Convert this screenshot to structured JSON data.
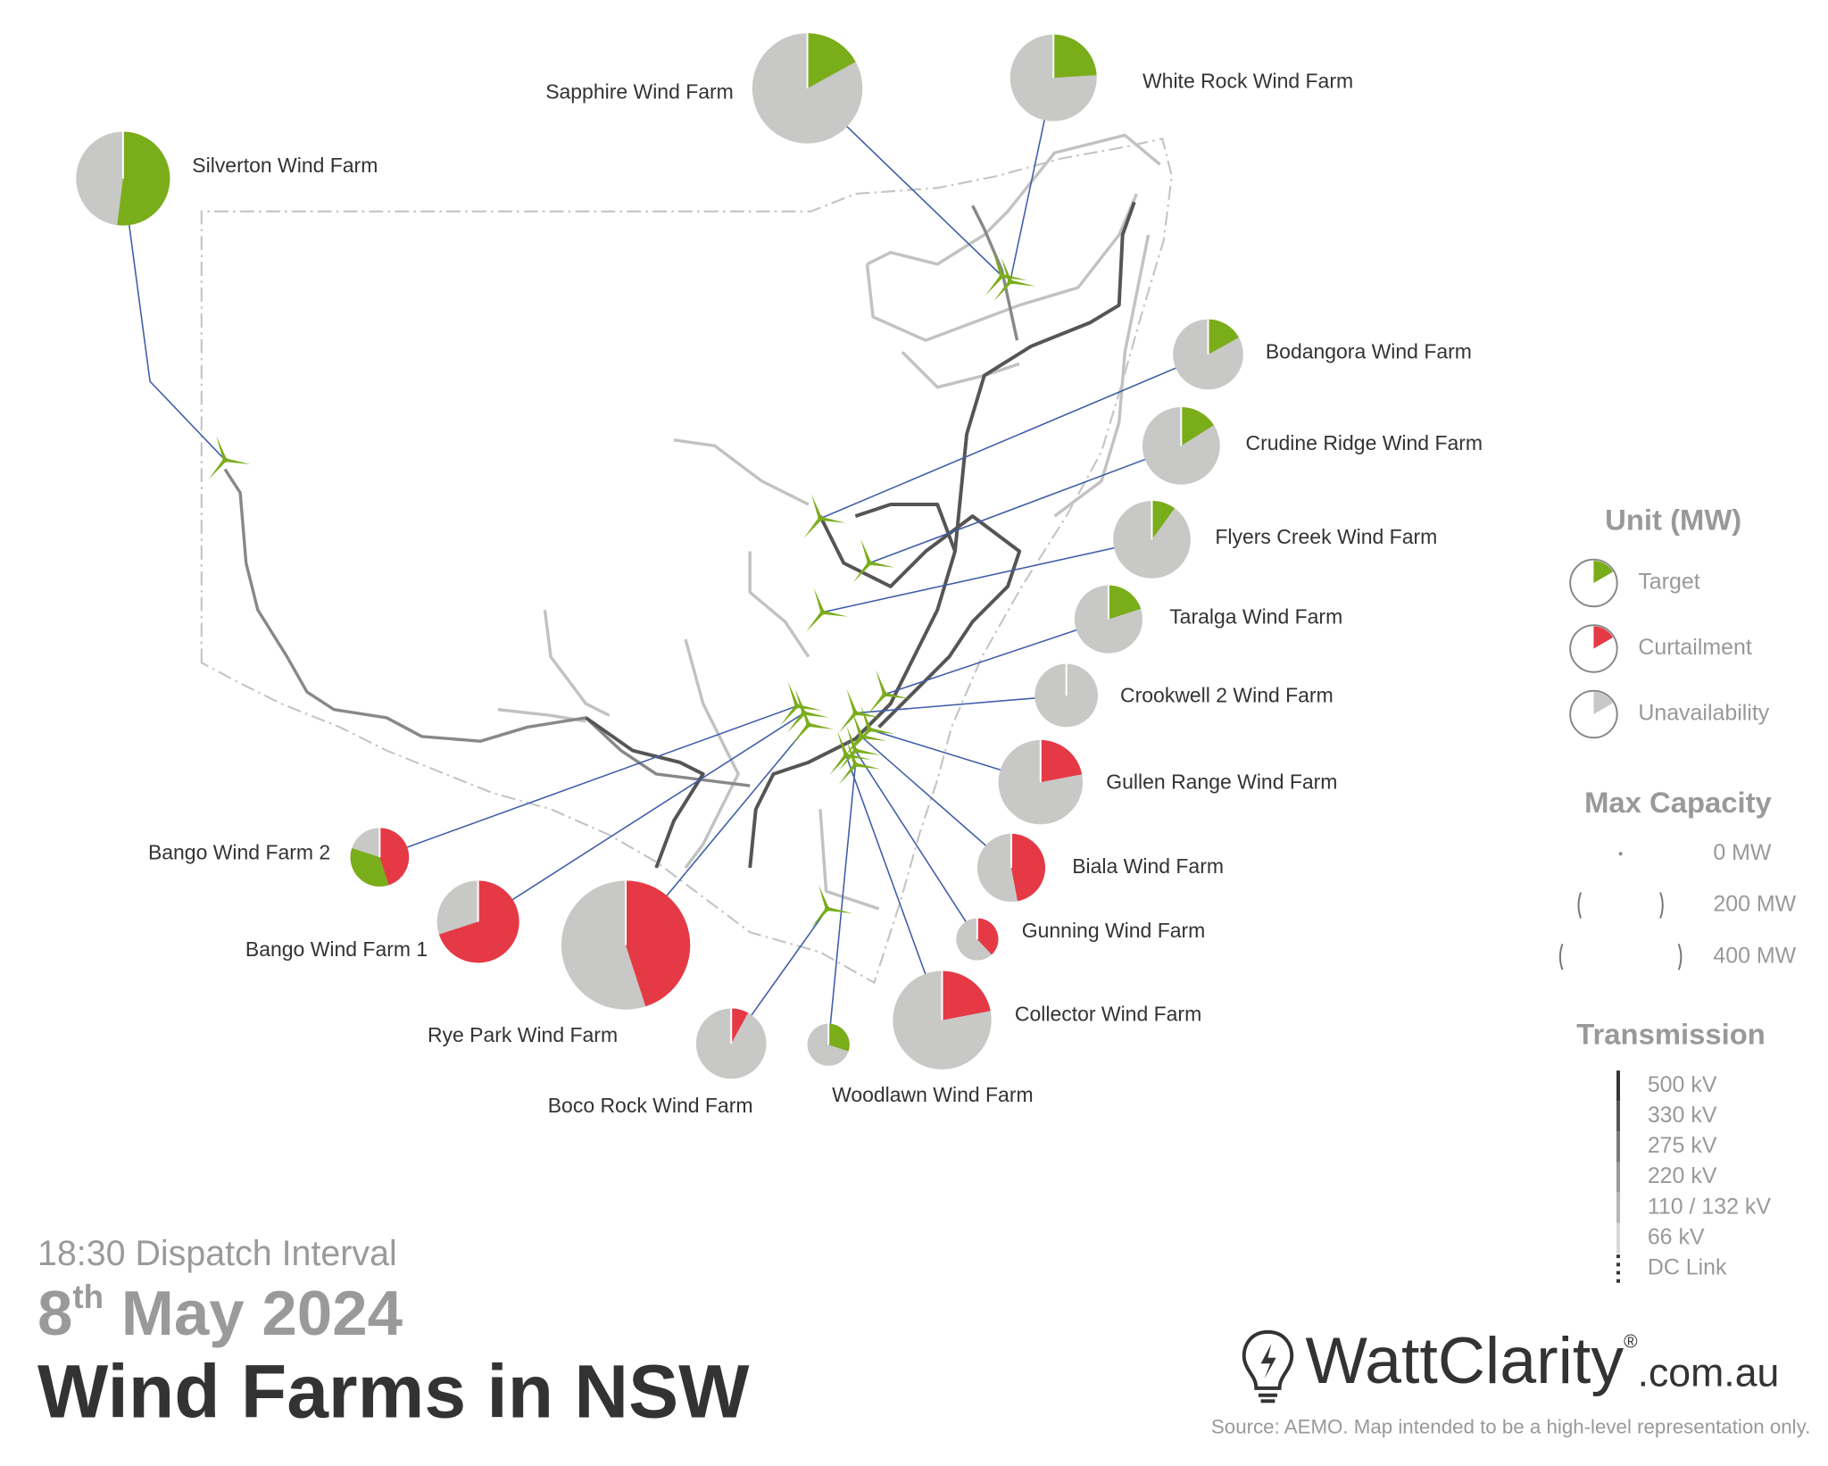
{
  "map": {
    "title": "Wind Farms in NSW",
    "interval": "18:30 Dispatch Interval",
    "date": {
      "day": "8",
      "suffix": "th",
      "rest": " May 2024"
    },
    "farms": [
      {
        "name": "Silverton Wind Farm",
        "capacity_mw": 223,
        "target_pct": 52,
        "curtailment_pct": 0
      },
      {
        "name": "Sapphire Wind Farm",
        "capacity_mw": 308,
        "target_pct": 17,
        "curtailment_pct": 0
      },
      {
        "name": "White Rock Wind Farm",
        "capacity_mw": 190,
        "target_pct": 24,
        "curtailment_pct": 0
      },
      {
        "name": "Bodangora Wind Farm",
        "capacity_mw": 125,
        "target_pct": 17,
        "curtailment_pct": 0
      },
      {
        "name": "Crudine Ridge Wind Farm",
        "capacity_mw": 152,
        "target_pct": 16,
        "curtailment_pct": 0
      },
      {
        "name": "Flyers Creek Wind Farm",
        "capacity_mw": 152,
        "target_pct": 10,
        "curtailment_pct": 0
      },
      {
        "name": "Taralga Wind Farm",
        "capacity_mw": 117,
        "target_pct": 20,
        "curtailment_pct": 0
      },
      {
        "name": "Crookwell 2 Wind Farm",
        "capacity_mw": 101,
        "target_pct": 0,
        "curtailment_pct": 0
      },
      {
        "name": "Gullen Range Wind Farm",
        "capacity_mw": 180,
        "target_pct": 0,
        "curtailment_pct": 22
      },
      {
        "name": "Biala Wind Farm",
        "capacity_mw": 117,
        "target_pct": 0,
        "curtailment_pct": 47
      },
      {
        "name": "Gunning Wind Farm",
        "capacity_mw": 45,
        "target_pct": 0,
        "curtailment_pct": 38
      },
      {
        "name": "Collector Wind Farm",
        "capacity_mw": 246,
        "target_pct": 0,
        "curtailment_pct": 22
      },
      {
        "name": "Woodlawn Wind Farm",
        "capacity_mw": 45,
        "target_pct": 30,
        "curtailment_pct": 0
      },
      {
        "name": "Boco Rock Wind Farm",
        "capacity_mw": 125,
        "target_pct": 0,
        "curtailment_pct": 8
      },
      {
        "name": "Rye Park Wind Farm",
        "capacity_mw": 421,
        "target_pct": 0,
        "curtailment_pct": 45
      },
      {
        "name": "Bango Wind Farm 1",
        "capacity_mw": 171,
        "target_pct": 0,
        "curtailment_pct": 70
      },
      {
        "name": "Bango Wind Farm 2",
        "capacity_mw": 87,
        "target_pct": 35,
        "curtailment_pct": 45
      }
    ],
    "legend": {
      "unit_title": "Unit (MW)",
      "unit_items": [
        "Target",
        "Curtailment",
        "Unavailability"
      ],
      "capacity_title": "Max Capacity",
      "capacity_items": [
        {
          "value": 0,
          "label": "0 MW"
        },
        {
          "value": 200,
          "label": "200 MW"
        },
        {
          "value": 400,
          "label": "400 MW"
        }
      ],
      "transmission_title": "Transmission",
      "transmission_items": [
        "500 kV",
        "330 kV",
        "275 kV",
        "220 kV",
        "110 / 132 kV",
        "66 kV",
        "DC Link"
      ]
    },
    "logo": {
      "brand": "WattClarity",
      "reg": "®",
      "domain": ".com.au"
    },
    "source": "Source: AEMO. Map intended to be a high-level representation only."
  }
}
